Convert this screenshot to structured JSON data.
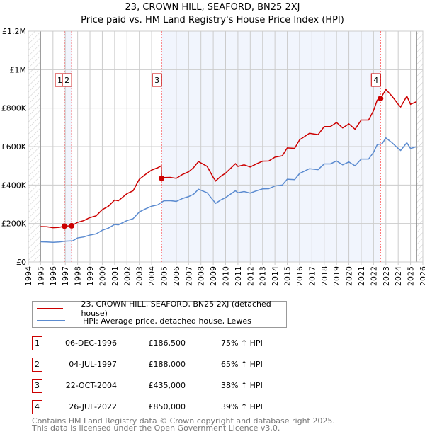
{
  "chart_data": {
    "type": "line",
    "title": "23, CROWN HILL, SEAFORD, BN25 2XJ",
    "subtitle": "Price paid vs. HM Land Registry's House Price Index (HPI)",
    "xlim": [
      1994,
      2026
    ],
    "ylim": [
      0,
      1200000
    ],
    "x_ticks": [
      "1994",
      "1995",
      "1996",
      "1997",
      "1998",
      "1999",
      "2000",
      "2001",
      "2002",
      "2003",
      "2004",
      "2005",
      "2006",
      "2007",
      "2008",
      "2009",
      "2010",
      "2011",
      "2012",
      "2013",
      "2014",
      "2015",
      "2016",
      "2017",
      "2018",
      "2019",
      "2020",
      "2021",
      "2022",
      "2023",
      "2024",
      "2025",
      "2026"
    ],
    "y_ticks": [
      {
        "v": 0,
        "label": "£0"
      },
      {
        "v": 200000,
        "label": "£200K"
      },
      {
        "v": 400000,
        "label": "£400K"
      },
      {
        "v": 600000,
        "label": "£600K"
      },
      {
        "v": 800000,
        "label": "£800K"
      },
      {
        "v": 1000000,
        "label": "£1M"
      },
      {
        "v": 1200000,
        "label": "£1.2M"
      }
    ],
    "grid": true,
    "shaded_ranges": [
      [
        1996.93,
        1997.51
      ],
      [
        2004.81,
        2022.57
      ]
    ],
    "hatched_ranges": [
      [
        1994,
        1995
      ],
      [
        2025.5,
        2026
      ]
    ],
    "series": [
      {
        "name": "23, CROWN HILL, SEAFORD, BN25 2XJ (detached house)",
        "color": "#cc0000",
        "x": [
          1995,
          1995.5,
          1996,
          1996.5,
          1996.93,
          1997.51,
          1998,
          1998.5,
          1999,
          1999.5,
          2000,
          2000.5,
          2001,
          2001.3,
          2002,
          2002.5,
          2003,
          2003.5,
          2004,
          2004.5,
          2004.78,
          2004.81,
          2005,
          2005.5,
          2006,
          2006.5,
          2007,
          2007.4,
          2007.8,
          2008.5,
          2009,
          2009.2,
          2009.6,
          2010,
          2010.8,
          2011,
          2011.5,
          2012,
          2012.5,
          2013,
          2013.5,
          2014,
          2014.6,
          2015,
          2015.6,
          2016,
          2016.8,
          2017.5,
          2018,
          2018.5,
          2019,
          2019.5,
          2020,
          2020.5,
          2021,
          2021.6,
          2022,
          2022.3,
          2022.57,
          2023,
          2023.5,
          2024,
          2024.2,
          2024.7,
          2025,
          2025.5
        ],
        "y": [
          184000,
          183000,
          178000,
          180000,
          186500,
          188000,
          206000,
          215000,
          231000,
          240000,
          272000,
          290000,
          322000,
          318000,
          355000,
          370000,
          430000,
          455000,
          478000,
          490000,
          500000,
          435000,
          439000,
          440000,
          435000,
          455000,
          469000,
          490000,
          522000,
          497000,
          440000,
          421000,
          445000,
          462000,
          511000,
          497000,
          505000,
          494000,
          510000,
          524000,
          525000,
          545000,
          552000,
          593000,
          591000,
          635000,
          669000,
          662000,
          704000,
          704000,
          725000,
          697000,
          718000,
          690000,
          738000,
          738000,
          787000,
          842000,
          850000,
          897000,
          862000,
          820000,
          806000,
          862000,
          820000,
          834000
        ]
      },
      {
        "name": "HPI: Average price, detached house, Lewes",
        "color": "#5b8bd0",
        "x": [
          1995,
          1995.5,
          1996,
          1996.5,
          1997,
          1997.6,
          1998,
          1998.5,
          1999,
          1999.5,
          2000,
          2000.5,
          2001,
          2001.3,
          2002,
          2002.5,
          2003,
          2003.5,
          2004,
          2004.5,
          2004.8,
          2005,
          2005.5,
          2006,
          2006.5,
          2007,
          2007.4,
          2007.8,
          2008.5,
          2009,
          2009.2,
          2009.6,
          2010,
          2010.8,
          2011,
          2011.5,
          2012,
          2012.5,
          2013,
          2013.5,
          2014,
          2014.6,
          2015,
          2015.6,
          2016,
          2016.8,
          2017.5,
          2018,
          2018.5,
          2019,
          2019.5,
          2020,
          2020.5,
          2021,
          2021.6,
          2022,
          2022.3,
          2022.7,
          2023,
          2023.5,
          2024,
          2024.2,
          2024.7,
          2025,
          2025.5
        ],
        "y": [
          105000,
          104000,
          102000,
          104000,
          108000,
          110000,
          125000,
          130000,
          140000,
          146000,
          165000,
          176000,
          195000,
          193000,
          215000,
          225000,
          260000,
          276000,
          290000,
          297000,
          310000,
          318000,
          319000,
          315000,
          330000,
          340000,
          352000,
          378000,
          360000,
          320000,
          305000,
          322000,
          335000,
          370000,
          360000,
          366000,
          358000,
          370000,
          380000,
          381000,
          395000,
          400000,
          430000,
          428000,
          460000,
          485000,
          480000,
          510000,
          510000,
          525000,
          505000,
          520000,
          500000,
          535000,
          535000,
          570000,
          610000,
          615000,
          645000,
          620000,
          590000,
          580000,
          620000,
          590000,
          600000
        ]
      }
    ],
    "sales": [
      {
        "n": "1",
        "x": 1996.93,
        "y": 186500,
        "date": "06-DEC-1996",
        "price": "£186,500",
        "hpi": "75% ↑ HPI"
      },
      {
        "n": "2",
        "x": 1997.51,
        "y": 188000,
        "date": "04-JUL-1997",
        "price": "£188,000",
        "hpi": "65% ↑ HPI"
      },
      {
        "n": "3",
        "x": 2004.81,
        "y": 435000,
        "date": "22-OCT-2004",
        "price": "£435,000",
        "hpi": "38% ↑ HPI"
      },
      {
        "n": "4",
        "x": 2022.57,
        "y": 850000,
        "date": "26-JUL-2022",
        "price": "£850,000",
        "hpi": "39% ↑ HPI"
      }
    ]
  },
  "footer": {
    "line1": "Contains HM Land Registry data © Crown copyright and database right 2025.",
    "line2": "This data is licensed under the Open Government Licence v3.0."
  }
}
